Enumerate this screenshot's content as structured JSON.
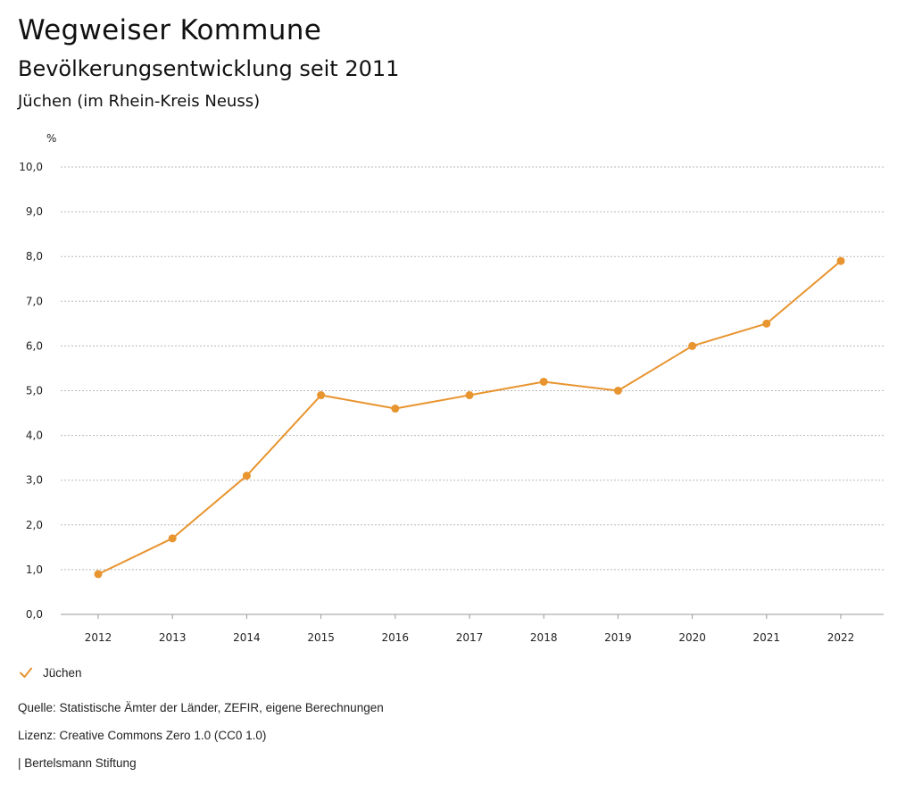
{
  "header": {
    "title": "Wegweiser Kommune",
    "subtitle": "Bevölkerungsentwicklung seit 2011",
    "region": "Jüchen (im Rhein-Kreis Neuss)"
  },
  "chart_data": {
    "type": "line",
    "title": "Bevölkerungsentwicklung seit 2011",
    "xlabel": "",
    "ylabel": "%",
    "categories": [
      "2012",
      "2013",
      "2014",
      "2015",
      "2016",
      "2017",
      "2018",
      "2019",
      "2020",
      "2021",
      "2022"
    ],
    "series": [
      {
        "name": "Jüchen",
        "values": [
          0.9,
          1.7,
          3.1,
          4.9,
          4.6,
          4.9,
          5.2,
          5.0,
          6.0,
          6.5,
          7.9
        ]
      }
    ],
    "ylim": [
      0,
      10
    ],
    "yticks": [
      "0,0",
      "1,0",
      "2,0",
      "3,0",
      "4,0",
      "5,0",
      "6,0",
      "7,0",
      "8,0",
      "9,0",
      "10,0"
    ],
    "grid": true,
    "legend_position": "bottom-left",
    "color": "#e8942f"
  },
  "legend": {
    "label": "Jüchen"
  },
  "footer": {
    "source": "Quelle: Statistische Ämter der Länder, ZEFIR, eigene Berechnungen",
    "license": "Lizenz: Creative Commons Zero 1.0 (CC0 1.0)",
    "publisher": "| Bertelsmann Stiftung"
  }
}
